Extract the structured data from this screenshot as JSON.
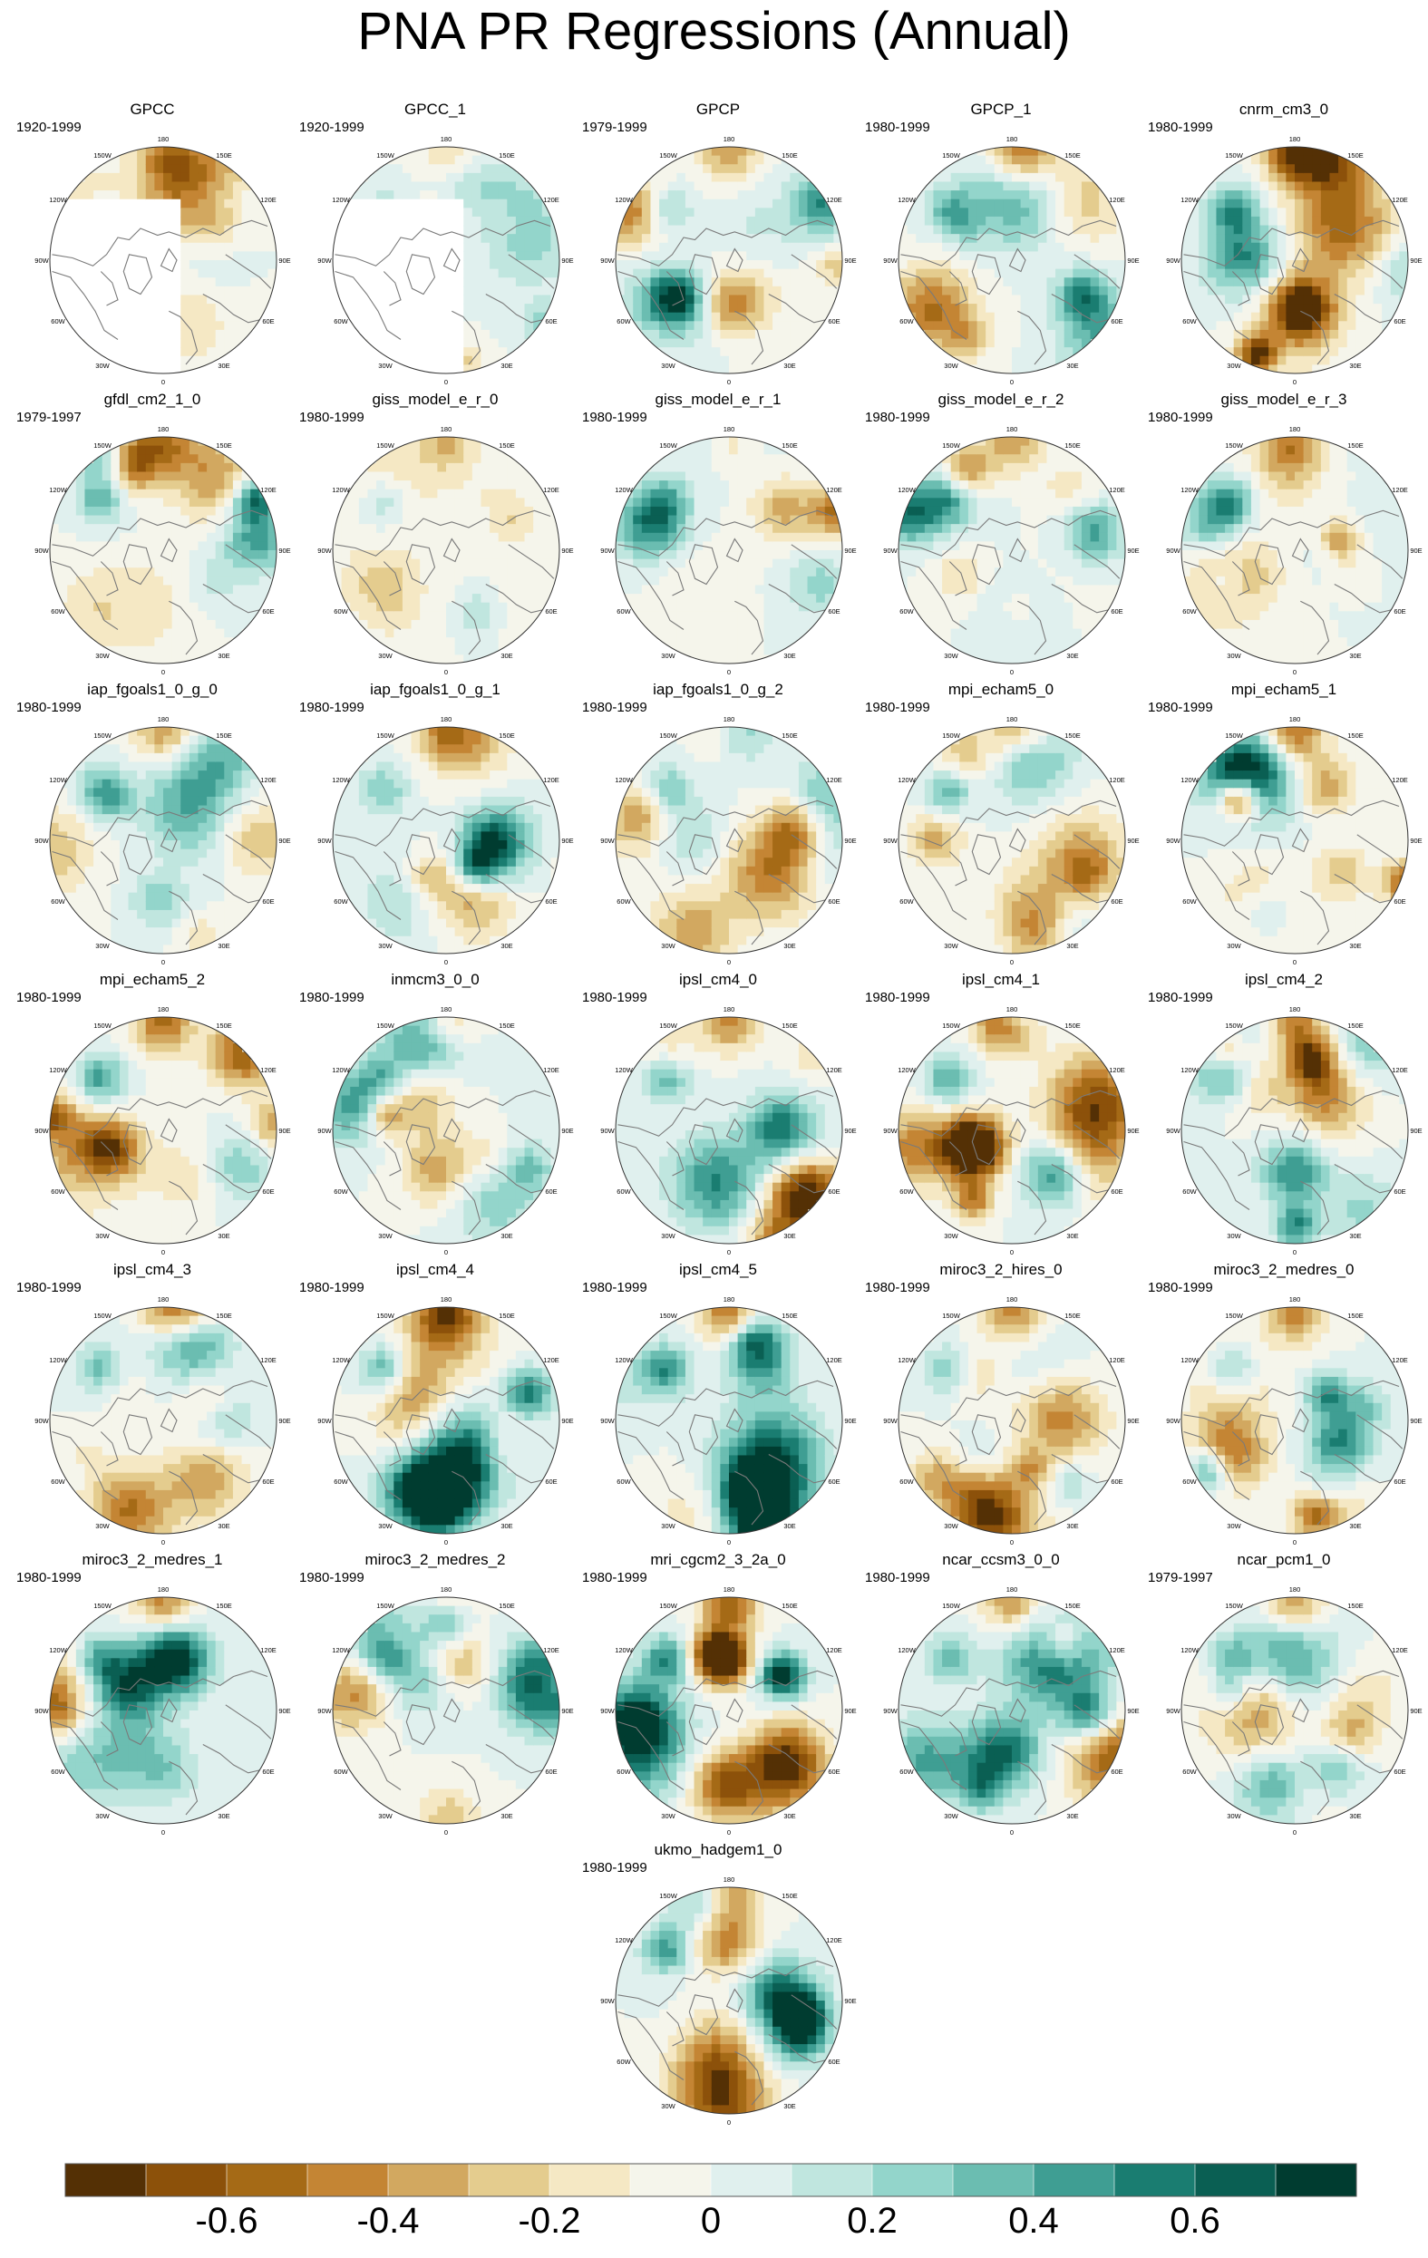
{
  "title": "PNA PR Regressions (Annual)",
  "panels": [
    {
      "name": "GPCC",
      "years": "1920-1999",
      "has_missing": true,
      "seed": 11,
      "amp": 0.3
    },
    {
      "name": "GPCC_1",
      "years": "1920-1999",
      "has_missing": true,
      "seed": 12,
      "amp": 0.3
    },
    {
      "name": "GPCP",
      "years": "1979-1999",
      "seed": 13,
      "amp": 0.55
    },
    {
      "name": "GPCP_1",
      "years": "1980-1999",
      "seed": 14,
      "amp": 0.55
    },
    {
      "name": "cnrm_cm3_0",
      "years": "1980-1999",
      "seed": 15,
      "amp": 0.75
    },
    {
      "name": "gfdl_cm2_1_0",
      "years": "1979-1997",
      "seed": 16,
      "amp": 0.65
    },
    {
      "name": "giss_model_e_r_0",
      "years": "1980-1999",
      "seed": 17,
      "amp": 0.45
    },
    {
      "name": "giss_model_e_r_1",
      "years": "1980-1999",
      "seed": 18,
      "amp": 0.45
    },
    {
      "name": "giss_model_e_r_2",
      "years": "1980-1999",
      "seed": 19,
      "amp": 0.55
    },
    {
      "name": "giss_model_e_r_3",
      "years": "1980-1999",
      "seed": 20,
      "amp": 0.55
    },
    {
      "name": "iap_fgoals1_0_g_0",
      "years": "1980-1999",
      "seed": 21,
      "amp": 0.55
    },
    {
      "name": "iap_fgoals1_0_g_1",
      "years": "1980-1999",
      "seed": 22,
      "amp": 0.5
    },
    {
      "name": "iap_fgoals1_0_g_2",
      "years": "1980-1999",
      "seed": 23,
      "amp": 0.55
    },
    {
      "name": "mpi_echam5_0",
      "years": "1980-1999",
      "seed": 24,
      "amp": 0.75
    },
    {
      "name": "mpi_echam5_1",
      "years": "1980-1999",
      "seed": 25,
      "amp": 0.8
    },
    {
      "name": "mpi_echam5_2",
      "years": "1980-1999",
      "seed": 26,
      "amp": 0.75
    },
    {
      "name": "inmcm3_0_0",
      "years": "1980-1999",
      "seed": 27,
      "amp": 0.5
    },
    {
      "name": "ipsl_cm4_0",
      "years": "1980-1999",
      "seed": 28,
      "amp": 0.6
    },
    {
      "name": "ipsl_cm4_1",
      "years": "1980-1999",
      "seed": 29,
      "amp": 0.7
    },
    {
      "name": "ipsl_cm4_2",
      "years": "1980-1999",
      "seed": 30,
      "amp": 0.65
    },
    {
      "name": "ipsl_cm4_3",
      "years": "1980-1999",
      "seed": 31,
      "amp": 0.6
    },
    {
      "name": "ipsl_cm4_4",
      "years": "1980-1999",
      "seed": 32,
      "amp": 0.75
    },
    {
      "name": "ipsl_cm4_5",
      "years": "1980-1999",
      "seed": 33,
      "amp": 0.75
    },
    {
      "name": "miroc3_2_hires_0",
      "years": "1980-1999",
      "seed": 34,
      "amp": 0.6
    },
    {
      "name": "miroc3_2_medres_0",
      "years": "1980-1999",
      "seed": 35,
      "amp": 0.65
    },
    {
      "name": "miroc3_2_medres_1",
      "years": "1980-1999",
      "seed": 36,
      "amp": 0.65
    },
    {
      "name": "miroc3_2_medres_2",
      "years": "1980-1999",
      "seed": 37,
      "amp": 0.6
    },
    {
      "name": "mri_cgcm2_3_2a_0",
      "years": "1980-1999",
      "seed": 38,
      "amp": 0.85
    },
    {
      "name": "ncar_ccsm3_0_0",
      "years": "1980-1999",
      "seed": 39,
      "amp": 0.6
    },
    {
      "name": "ncar_pcm1_0",
      "years": "1979-1997",
      "seed": 40,
      "amp": 0.65
    },
    {
      "name": "ukmo_hadgem1_0",
      "years": "1980-1999",
      "seed": 41,
      "amp": 0.75
    }
  ],
  "longitude_labels": [
    "180",
    "150E",
    "120E",
    "90E",
    "60E",
    "30E",
    "0",
    "30W",
    "60W",
    "90W",
    "120W",
    "150W"
  ],
  "colorbar": {
    "colors": [
      "#543005",
      "#8c510a",
      "#a56a16",
      "#c48534",
      "#d2a860",
      "#e4cc8e",
      "#f5e8c4",
      "#f5f5eb",
      "#e0f0ee",
      "#c0e6df",
      "#93d5cb",
      "#6bbdb1",
      "#3f9e93",
      "#1a7d71",
      "#0a5f53",
      "#003c30"
    ],
    "tick_labels": [
      "-0.6",
      "-0.4",
      "-0.2",
      "0",
      "0.2",
      "0.4",
      "0.6"
    ]
  }
}
